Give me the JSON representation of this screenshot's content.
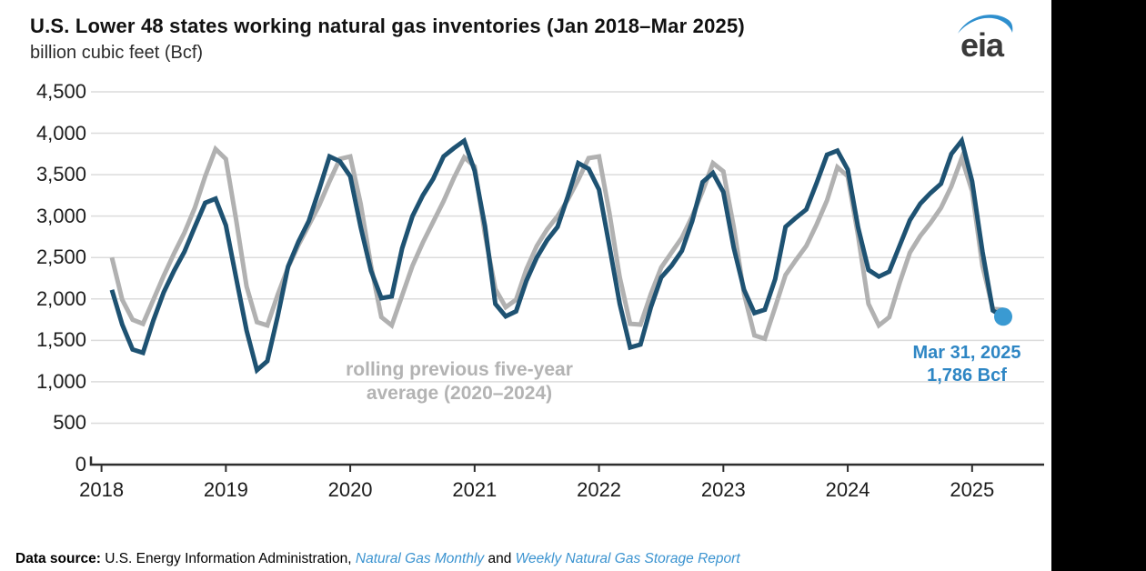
{
  "chart_data": {
    "type": "line",
    "title": "U.S. Lower 48 states working natural gas inventories (Jan 2018–Mar 2025)",
    "units": "billion cubic feet (Bcf)",
    "x_start": "Jan 2018",
    "x_end": "Mar 2025",
    "x_tick_labels": [
      "2018",
      "2019",
      "2020",
      "2021",
      "2022",
      "2023",
      "2024",
      "2025"
    ],
    "y_ticks": [
      0,
      500,
      1000,
      1500,
      2000,
      2500,
      3000,
      3500,
      4000,
      4500
    ],
    "y_tick_labels": [
      "0",
      "500",
      "1,000",
      "1,500",
      "2,000",
      "2,500",
      "3,000",
      "3,500",
      "4,000",
      "4,500"
    ],
    "ylim": [
      0,
      4500
    ],
    "grid": true,
    "legend": "inline text labels (no legend box)",
    "points_per_series": "monthly, Jan 2018 through Mar 2025",
    "series": [
      {
        "name": "rolling previous five-year average (2020–2024)",
        "color": "#b1b1b1",
        "values": [
          2500,
          1990,
          1750,
          1700,
          1990,
          2280,
          2550,
          2800,
          3100,
          3480,
          3810,
          3690,
          2950,
          2150,
          1720,
          1680,
          2050,
          2380,
          2650,
          2890,
          3130,
          3420,
          3690,
          3720,
          3150,
          2400,
          1780,
          1680,
          2040,
          2400,
          2680,
          2930,
          3180,
          3460,
          3710,
          3600,
          2780,
          2120,
          1900,
          1990,
          2360,
          2640,
          2840,
          3000,
          3200,
          3440,
          3700,
          3720,
          3040,
          2260,
          1700,
          1690,
          2060,
          2380,
          2560,
          2740,
          3000,
          3300,
          3640,
          3540,
          2870,
          2060,
          1560,
          1520,
          1900,
          2290,
          2470,
          2640,
          2900,
          3190,
          3590,
          3480,
          2760,
          1940,
          1680,
          1780,
          2190,
          2560,
          2760,
          2920,
          3100,
          3360,
          3700,
          3300,
          2400,
          1880,
          1870
        ]
      },
      {
        "name": "working natural gas inventories",
        "color": "#1e5272",
        "values": [
          2110,
          1690,
          1390,
          1350,
          1740,
          2080,
          2340,
          2570,
          2870,
          3160,
          3210,
          2890,
          2250,
          1620,
          1140,
          1250,
          1790,
          2390,
          2690,
          2940,
          3320,
          3720,
          3660,
          3480,
          2870,
          2340,
          2010,
          2030,
          2610,
          3000,
          3250,
          3450,
          3720,
          3820,
          3910,
          3550,
          2880,
          1940,
          1790,
          1850,
          2220,
          2500,
          2710,
          2870,
          3240,
          3640,
          3570,
          3320,
          2640,
          1940,
          1415,
          1450,
          1900,
          2260,
          2400,
          2580,
          2940,
          3410,
          3520,
          3290,
          2620,
          2110,
          1830,
          1870,
          2240,
          2870,
          2980,
          3080,
          3400,
          3740,
          3790,
          3560,
          2860,
          2350,
          2270,
          2330,
          2640,
          2950,
          3150,
          3280,
          3390,
          3750,
          3910,
          3420,
          2570,
          1860,
          1786
        ]
      }
    ],
    "end_marker": {
      "date": "Mar 31, 2025",
      "value": 1786,
      "color": "#3a9ad2"
    },
    "annotations": {
      "series_label_line1": "rolling previous five-year",
      "series_label_line2": "average (2020–2024)",
      "endpoint_line1": "Mar 31, 2025",
      "endpoint_line2": "1,786 Bcf"
    },
    "style": {
      "gridline_color": "#dcdcdc",
      "axis_color": "#2e2e2e",
      "line_width": 5
    }
  },
  "logo": {
    "text": "eia",
    "swoosh_color": "#2e8fce",
    "text_color": "#3a3a3a"
  },
  "footer": {
    "source_label": "Data source:",
    "source_text": " U.S. Energy Information Administration, ",
    "link1": "Natural Gas Monthly",
    "conjunction": " and ",
    "link2": "Weekly Natural Gas Storage Report"
  }
}
